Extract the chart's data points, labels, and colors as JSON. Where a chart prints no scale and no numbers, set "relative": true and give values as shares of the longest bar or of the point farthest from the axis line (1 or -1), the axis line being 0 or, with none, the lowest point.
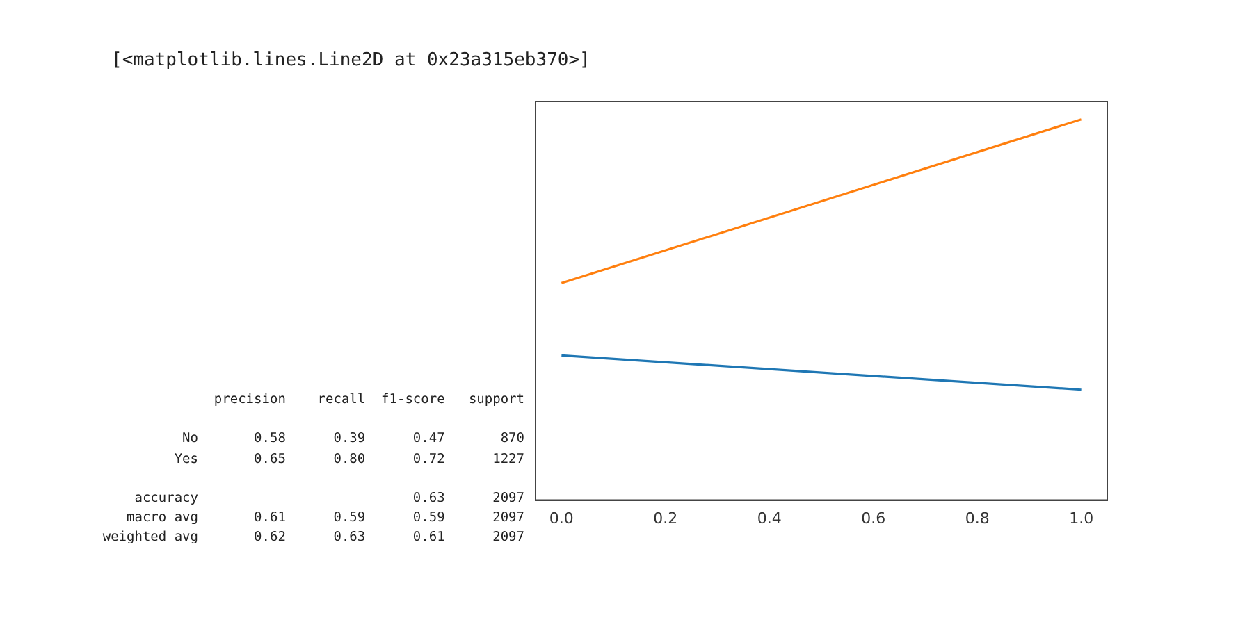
{
  "chart_data": {
    "type": "line",
    "relative": true,
    "x": [
      0,
      1
    ],
    "series": [
      {
        "color": "#1f77b4",
        "values": [
          0.38,
          0.29
        ]
      },
      {
        "color": "#ff7f0e",
        "values": [
          0.57,
          1
        ]
      }
    ],
    "xlim": [
      -0.05,
      1.05
    ],
    "xticks": [
      {
        "value": 0,
        "label": "0.0"
      },
      {
        "value": 0.2,
        "label": "0.2"
      },
      {
        "value": 0.4,
        "label": "0.4"
      },
      {
        "value": 0.6,
        "label": "0.6"
      },
      {
        "value": 0.8,
        "label": "0.8"
      },
      {
        "value": 1,
        "label": "1.0"
      }
    ],
    "grid": false,
    "legend": false,
    "marker": "none",
    "line_style": "solid",
    "annotations": [
      "[<matplotlib.lines.Line2D at 0x23a315eb370>]",
      "              precision    recall  f1-score   support\n\n          No       0.58      0.39      0.47       870\n         Yes       0.65      0.80      0.72      1227\n\n    accuracy                           0.63      2097\n   macro avg       0.61      0.59      0.59      2097\nweighted avg       0.62      0.63      0.61      2097"
    ]
  }
}
